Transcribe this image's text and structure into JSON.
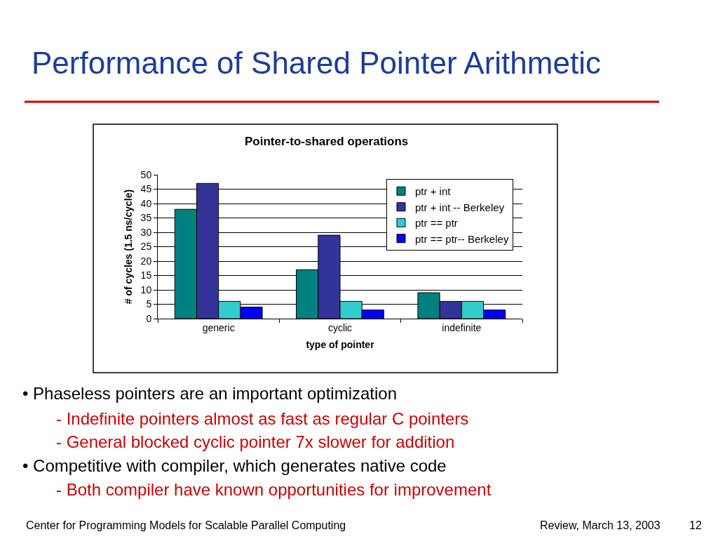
{
  "chart_data": {
    "type": "bar",
    "title": "Performance of Shared Pointer Arithmetic",
    "subtitle": "Pointer-to-shared operations",
    "xlabel": "type of pointer",
    "ylabel": "# of cycles (1.5 ns/cycle)",
    "categories": [
      "generic",
      "cyclic",
      "indefinite"
    ],
    "series": [
      {
        "name": "ptr + int",
        "color": "#008080",
        "values": [
          38,
          17,
          9
        ]
      },
      {
        "name": "ptr + int -- Berkeley",
        "color": "#333399",
        "values": [
          47,
          29,
          6
        ]
      },
      {
        "name": "ptr == ptr",
        "color": "#33cccc",
        "values": [
          6,
          6,
          6
        ]
      },
      {
        "name": "ptr == ptr-- Berkeley",
        "color": "#0000ff",
        "values": [
          4,
          3,
          3
        ]
      }
    ],
    "ylim": [
      0,
      50
    ],
    "yticks": [
      0,
      5,
      10,
      15,
      20,
      25,
      30,
      35,
      40,
      45,
      50
    ],
    "grid": "y",
    "legend": "top right",
    "annotations": [
      "• Phaseless pointers are an important optimization",
      "- Indefinite pointers almost as fast as regular C pointers",
      "- General blocked cyclic pointer 7x slower for addition",
      "• Competitive with compiler, which generates native code",
      "- Both compiler have known opportunities for improvement",
      "Center for Programming Models for Scalable Parallel Computing",
      "Review, March 13, 2003",
      "12"
    ]
  }
}
